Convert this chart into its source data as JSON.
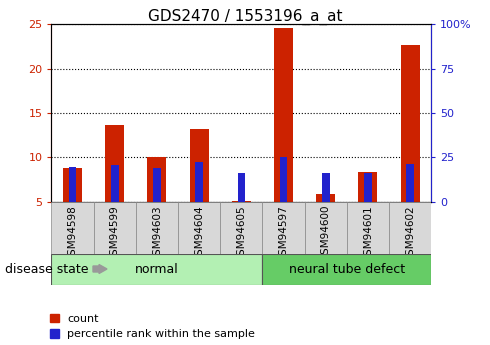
{
  "title": "GDS2470 / 1553196_a_at",
  "samples": [
    "GSM94598",
    "GSM94599",
    "GSM94603",
    "GSM94604",
    "GSM94605",
    "GSM94597",
    "GSM94600",
    "GSM94601",
    "GSM94602"
  ],
  "count_values": [
    8.8,
    13.7,
    10.1,
    13.2,
    5.1,
    24.6,
    5.9,
    8.4,
    22.6
  ],
  "percentile_values": [
    19.5,
    20.5,
    19.0,
    22.5,
    16.5,
    25.0,
    16.5,
    16.5,
    21.5
  ],
  "ylim_left": [
    5,
    25
  ],
  "ylim_right": [
    0,
    100
  ],
  "yticks_left": [
    5,
    10,
    15,
    20,
    25
  ],
  "yticks_right": [
    0,
    25,
    50,
    75,
    100
  ],
  "bar_color": "#cc2200",
  "percentile_color": "#2222cc",
  "bar_width": 0.45,
  "percentile_bar_width": 0.18,
  "left_axis_color": "#cc2200",
  "right_axis_color": "#2222cc",
  "tick_label_fontsize": 7.5,
  "title_fontsize": 11,
  "legend_fontsize": 8,
  "group_label_fontsize": 9,
  "disease_state_fontsize": 9,
  "normal_color": "#b3f0b3",
  "ntd_color": "#66cc66",
  "gray_box_color": "#d8d8d8",
  "gray_box_edge": "#888888"
}
